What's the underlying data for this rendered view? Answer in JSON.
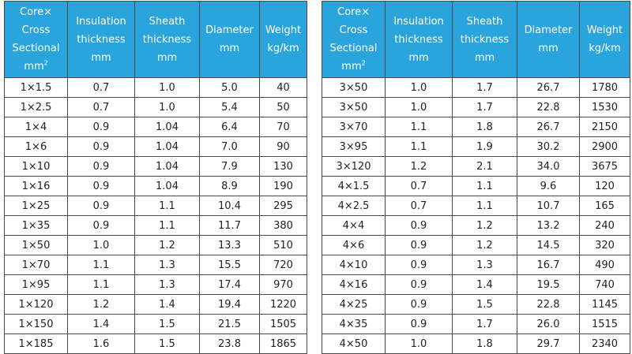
{
  "left": {
    "headers": [
      {
        "lines": [
          "Core×",
          "Cross",
          "Sectional",
          "mm"
        ],
        "sup": "2"
      },
      {
        "lines": [
          "Insulation",
          "thickness",
          "mm"
        ]
      },
      {
        "lines": [
          "Sheath",
          "thickness",
          "mm"
        ]
      },
      {
        "lines": [
          "Diameter",
          "mm"
        ]
      },
      {
        "lines": [
          "Weight",
          "kg/km"
        ]
      }
    ],
    "rows": [
      [
        "1×1.5",
        "0.7",
        "1.0",
        "5.0",
        "40"
      ],
      [
        "1×2.5",
        "0.7",
        "1.0",
        "5.4",
        "50"
      ],
      [
        "1×4",
        "0.9",
        "1.04",
        "6.4",
        "70"
      ],
      [
        "1×6",
        "0.9",
        "1.04",
        "7.0",
        "90"
      ],
      [
        "1×10",
        "0.9",
        "1.04",
        "7.9",
        "130"
      ],
      [
        "1×16",
        "0.9",
        "1.04",
        "8.9",
        "190"
      ],
      [
        "1×25",
        "0.9",
        "1.1",
        "10.4",
        "295"
      ],
      [
        "1×35",
        "0.9",
        "1.1",
        "11.7",
        "380"
      ],
      [
        "1×50",
        "1.0",
        "1.2",
        "13.3",
        "510"
      ],
      [
        "1×70",
        "1.1",
        "1.3",
        "15.5",
        "720"
      ],
      [
        "1×95",
        "1.1",
        "1.3",
        "17.4",
        "970"
      ],
      [
        "1×120",
        "1.2",
        "1.4",
        "19.4",
        "1220"
      ],
      [
        "1×150",
        "1.4",
        "1.5",
        "21.5",
        "1505"
      ],
      [
        "1×185",
        "1.6",
        "1.5",
        "23.8",
        "1865"
      ]
    ]
  },
  "right": {
    "headers": [
      {
        "lines": [
          "Core×",
          "Cross",
          "Sectional",
          "mm"
        ],
        "sup": "2"
      },
      {
        "lines": [
          "Insulation",
          "thickness",
          "mm"
        ]
      },
      {
        "lines": [
          "Sheath",
          "thickness",
          "mm"
        ]
      },
      {
        "lines": [
          "Diameter",
          "mm"
        ]
      },
      {
        "lines": [
          "Weight",
          "kg/km"
        ]
      }
    ],
    "rows": [
      [
        "3×50",
        "1.0",
        "1.7",
        "26.7",
        "1780"
      ],
      [
        "3×50",
        "1.0",
        "1.7",
        "22.8",
        "1530"
      ],
      [
        "3×70",
        "1.1",
        "1.8",
        "26.7",
        "2150"
      ],
      [
        "3×95",
        "1.1",
        "1.9",
        "30.2",
        "2900"
      ],
      [
        "3×120",
        "1.2",
        "2.1",
        "34.0",
        "3675"
      ],
      [
        "4×1.5",
        "0.7",
        "1.1",
        "9.6",
        "120"
      ],
      [
        "4×2.5",
        "0.7",
        "1.1",
        "10.7",
        "165"
      ],
      [
        "4×4",
        "0.9",
        "1.2",
        "13.2",
        "240"
      ],
      [
        "4×6",
        "0.9",
        "1.2",
        "14.5",
        "320"
      ],
      [
        "4×10",
        "0.9",
        "1.3",
        "16.7",
        "490"
      ],
      [
        "4×16",
        "0.9",
        "1.4",
        "19.5",
        "740"
      ],
      [
        "4×25",
        "0.9",
        "1.5",
        "22.8",
        "1145"
      ],
      [
        "4×35",
        "0.9",
        "1.7",
        "26.0",
        "1515"
      ],
      [
        "4×50",
        "1.0",
        "1.8",
        "29.7",
        "2340"
      ]
    ]
  }
}
